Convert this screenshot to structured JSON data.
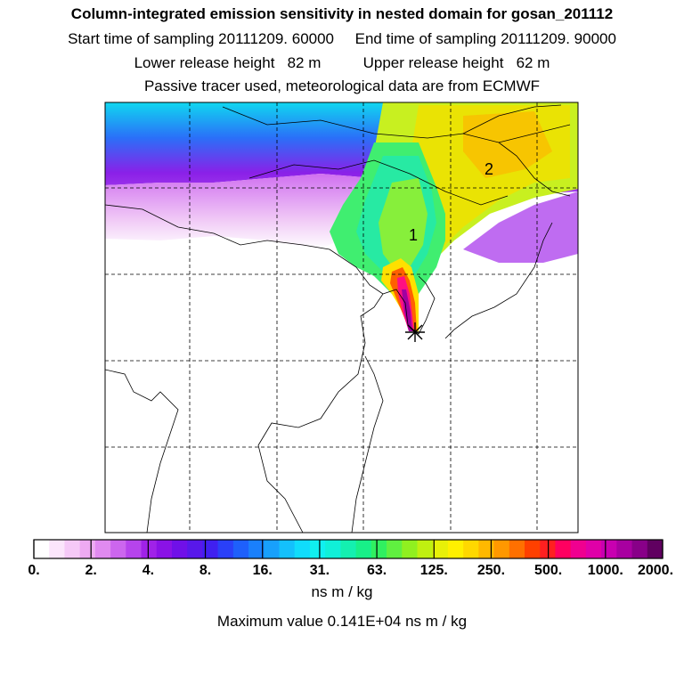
{
  "header": {
    "title": "Column-integrated emission sensitivity in nested domain for gosan_201112",
    "line2": "Start time of sampling 20111209. 60000     End time of sampling 20111209. 90000",
    "line3": "Lower release height   82 m          Upper release height   62 m",
    "line4": "Passive tracer used, meteorological data are from ECMWF"
  },
  "map": {
    "region_labels": [
      "1",
      "2"
    ],
    "receptor_marker": "asterisk-star",
    "grid": "dashed"
  },
  "colorbar": {
    "tick_labels": [
      "0.",
      "2.",
      "4.",
      "8.",
      "16.",
      "31.",
      "63.",
      "125.",
      "250.",
      "500.",
      "1000.",
      "2000."
    ],
    "units": "ns m / kg",
    "colors": [
      "#ffffff",
      "#fbe5fb",
      "#f5c9f7",
      "#eeaaf2",
      "#e08af0",
      "#cc66ee",
      "#b644ec",
      "#a022e8",
      "#8a12e6",
      "#7010e8",
      "#5818ea",
      "#4020f0",
      "#2a40f8",
      "#1e60fb",
      "#1a80fc",
      "#18a0fc",
      "#14c0fc",
      "#10dcfc",
      "#10f0f0",
      "#10f0d8",
      "#14f0b0",
      "#18f088",
      "#30f060",
      "#60f040",
      "#90f020",
      "#c0f010",
      "#e8f008",
      "#fff000",
      "#ffd800",
      "#ffb800",
      "#ff9800",
      "#ff7000",
      "#ff4000",
      "#ff2020",
      "#ff0060",
      "#f00090",
      "#e000a8",
      "#c800b0",
      "#a800a0",
      "#880088",
      "#600060"
    ]
  },
  "footer": {
    "maximum_value": "Maximum value  0.141E+04 ns m / kg"
  }
}
